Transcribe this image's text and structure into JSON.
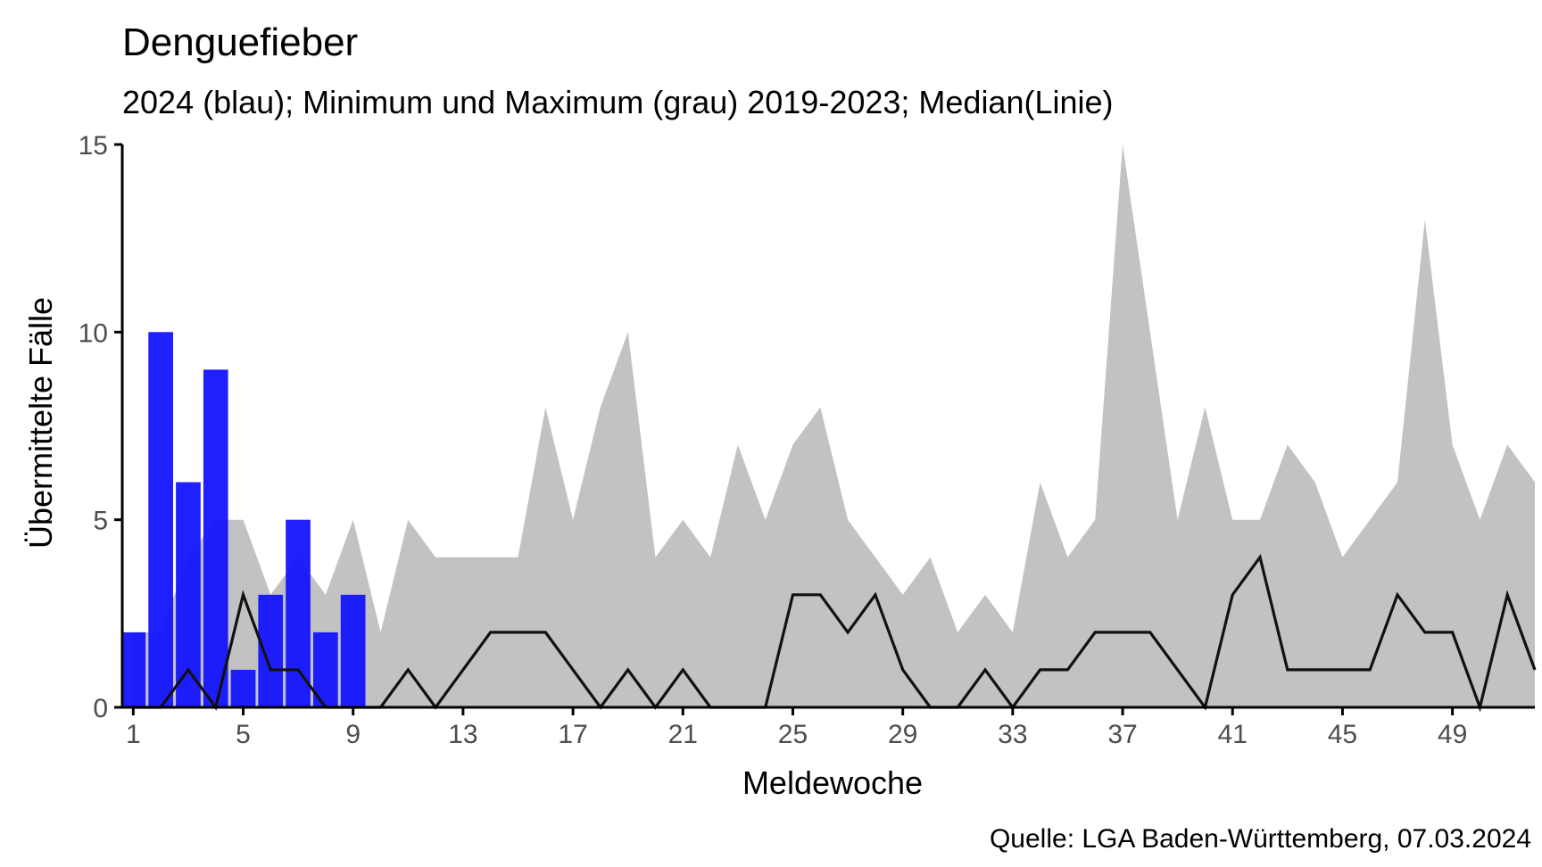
{
  "chart_data": {
    "type": "bar",
    "title": "Denguefieber",
    "subtitle": "2024 (blau); Minimum und Maximum (grau) 2019-2023; Median(Linie)",
    "xlabel": "Meldewoche",
    "ylabel": "Übermittelte Fälle",
    "caption": "Quelle: LGA Baden-Württemberg, 07.03.2024",
    "xlim": [
      0.6,
      52.0
    ],
    "ylim": [
      0,
      15
    ],
    "x_ticks": [
      1,
      5,
      9,
      13,
      17,
      21,
      25,
      29,
      33,
      37,
      41,
      45,
      49
    ],
    "y_ticks": [
      0,
      5,
      10,
      15
    ],
    "grid": false,
    "colors": {
      "bars": "#1414ff",
      "range": "#c2c2c2",
      "median": "#111111",
      "axis": "#000000",
      "tick_label": "#4d4d4d"
    },
    "series": [
      {
        "name": "2024",
        "kind": "bar",
        "x": [
          1,
          2,
          3,
          4,
          5,
          6,
          7,
          8,
          9
        ],
        "values": [
          2,
          10,
          6,
          9,
          1,
          3,
          5,
          2,
          3
        ]
      },
      {
        "name": "Minimum",
        "kind": "band-lower",
        "x": [
          1,
          2,
          3,
          4,
          5,
          6,
          7,
          8,
          9,
          10,
          11,
          12,
          13,
          14,
          15,
          16,
          17,
          18,
          19,
          20,
          21,
          22,
          23,
          24,
          25,
          26,
          27,
          28,
          29,
          30,
          31,
          32,
          33,
          34,
          35,
          36,
          37,
          38,
          39,
          40,
          41,
          42,
          43,
          44,
          45,
          46,
          47,
          48,
          49,
          50,
          51,
          52
        ],
        "values": [
          0,
          0,
          0,
          0,
          0,
          0,
          0,
          0,
          0,
          0,
          0,
          0,
          0,
          0,
          0,
          0,
          0,
          0,
          0,
          0,
          0,
          0,
          0,
          0,
          0,
          0,
          0,
          0,
          0,
          0,
          0,
          0,
          0,
          0,
          0,
          0,
          0,
          0,
          0,
          0,
          0,
          0,
          0,
          0,
          0,
          0,
          0,
          0,
          0,
          0,
          0,
          0
        ]
      },
      {
        "name": "Maximum",
        "kind": "band-upper",
        "x": [
          1,
          2,
          3,
          4,
          5,
          6,
          7,
          8,
          9,
          10,
          11,
          12,
          13,
          14,
          15,
          16,
          17,
          18,
          19,
          20,
          21,
          22,
          23,
          24,
          25,
          26,
          27,
          28,
          29,
          30,
          31,
          32,
          33,
          34,
          35,
          36,
          37,
          38,
          39,
          40,
          41,
          42,
          43,
          44,
          45,
          46,
          47,
          48,
          49,
          50,
          51,
          52
        ],
        "values": [
          2,
          2,
          4,
          5,
          5,
          3,
          4,
          3,
          5,
          2,
          5,
          4,
          4,
          4,
          4,
          8,
          5,
          8,
          10,
          4,
          5,
          4,
          7,
          5,
          7,
          8,
          5,
          4,
          3,
          4,
          2,
          3,
          2,
          6,
          4,
          5,
          15,
          10,
          5,
          8,
          5,
          5,
          7,
          6,
          4,
          5,
          6,
          13,
          7,
          5,
          7,
          6
        ]
      },
      {
        "name": "Median",
        "kind": "line",
        "x": [
          1,
          2,
          3,
          4,
          5,
          6,
          7,
          8,
          9,
          10,
          11,
          12,
          13,
          14,
          15,
          16,
          17,
          18,
          19,
          20,
          21,
          22,
          23,
          24,
          25,
          26,
          27,
          28,
          29,
          30,
          31,
          32,
          33,
          34,
          35,
          36,
          37,
          38,
          39,
          40,
          41,
          42,
          43,
          44,
          45,
          46,
          47,
          48,
          49,
          50,
          51,
          52
        ],
        "values": [
          0,
          0,
          1,
          0,
          3,
          1,
          1,
          0,
          0,
          0,
          1,
          0,
          1,
          2,
          2,
          2,
          1,
          0,
          1,
          0,
          1,
          0,
          0,
          0,
          3,
          3,
          2,
          3,
          1,
          0,
          0,
          1,
          0,
          1,
          1,
          2,
          2,
          2,
          1,
          0,
          3,
          4,
          1,
          1,
          1,
          1,
          3,
          2,
          2,
          0,
          3,
          1
        ]
      }
    ]
  }
}
